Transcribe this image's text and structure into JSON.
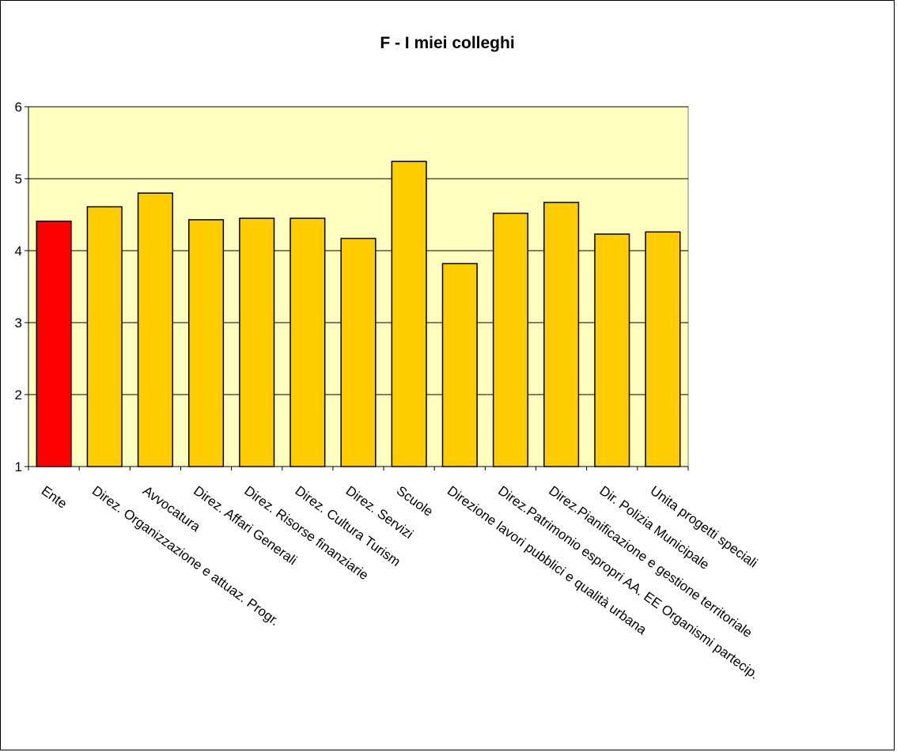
{
  "chart_data": {
    "type": "bar",
    "title": "F - I miei colleghi",
    "xlabel": "",
    "ylabel": "",
    "ylim": [
      1,
      6
    ],
    "yticks": [
      1,
      2,
      3,
      4,
      5,
      6
    ],
    "grid": true,
    "plot_background": "#FFFFC0",
    "bar_color": "#FFCC00",
    "highlight_color": "#FF0000",
    "categories": [
      "Ente",
      "Direz. Organizzazione e attuaz. Progr.",
      "Avvocatura",
      "Direz. Affari Generali",
      "Direz. Risorse finanziarie",
      "Direz.  Cultura Turism",
      "Direz. Servizi",
      "Scuole",
      "Direzione lavori pubblici e qualità urbana",
      "Direz.Patrimonio espropri AA. EE Organismi partecip.",
      "Direz.Pianificazione e gestione territoriale",
      "Dir. Polizia Municipale",
      "Unita progetti speciali"
    ],
    "values": [
      4.41,
      4.61,
      4.8,
      4.43,
      4.45,
      4.45,
      4.17,
      5.24,
      3.82,
      4.52,
      4.67,
      4.23,
      4.26
    ],
    "highlight_index": 0
  }
}
